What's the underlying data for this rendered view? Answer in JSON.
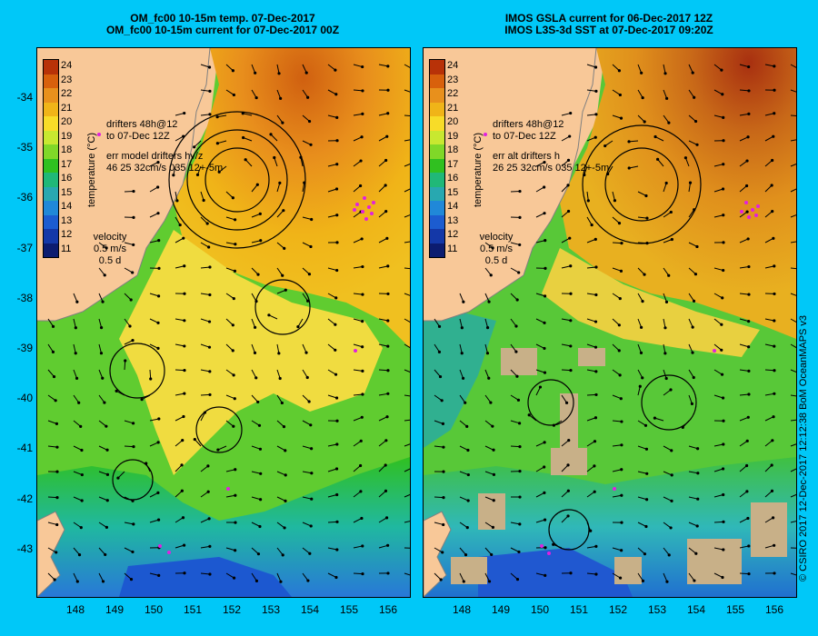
{
  "left_panel": {
    "title_line1": "OM_fc00 10-15m temp. 07-Dec-2017",
    "title_line2": "OM_fc00 10-15m current for 07-Dec-2017 00Z",
    "drifters_line1": "drifters 48h@12",
    "drifters_line2": "to 07-Dec 12Z",
    "err_line1": "err model drifters hv/z",
    "err_line2": "46 25 32cm/s 035 12+-5m",
    "velocity_label": "velocity",
    "velocity_scale": "0.5 m/s",
    "velocity_time": "0.5 d"
  },
  "right_panel": {
    "title_line1": "IMOS GSLA current for 06-Dec-2017 12Z",
    "title_line2": "IMOS L3S-3d SST at 07-Dec-2017 09:20Z",
    "drifters_line1": "drifters 48h@12",
    "drifters_line2": "to 07-Dec 12Z",
    "err_line1": "err alt drifters h",
    "err_line2": "26 25 32cm/s 035 12+-5m",
    "velocity_label": "velocity",
    "velocity_scale": "0.5 m/s",
    "velocity_time": "0.5 d"
  },
  "colorbar": {
    "label": "temperature (°C)",
    "ticks": [
      "24",
      "23",
      "22",
      "21",
      "20",
      "19",
      "18",
      "17",
      "16",
      "15",
      "14",
      "13",
      "12",
      "11"
    ],
    "colors": [
      "#b83208",
      "#d8600c",
      "#e8901c",
      "#f0b418",
      "#f8dc28",
      "#c8e830",
      "#80d828",
      "#30c020",
      "#20b878",
      "#28a8b0",
      "#2088d8",
      "#1c5cd0",
      "#1438a8",
      "#0c1c70"
    ]
  },
  "axes": {
    "y_ticks": [
      "-34",
      "-35",
      "-36",
      "-37",
      "-38",
      "-39",
      "-40",
      "-41",
      "-42",
      "-43"
    ],
    "x_ticks": [
      "148",
      "149",
      "150",
      "151",
      "152",
      "153",
      "154",
      "155",
      "156"
    ]
  },
  "colors": {
    "land": "#f8c898",
    "background": "#00c8f8",
    "drifter": "#e020e0",
    "missing_data": "#c8b088"
  },
  "credit": "© CSIRO 2017   12-Dec-2017 12:12:38 BoM OceanMAPS v3"
}
